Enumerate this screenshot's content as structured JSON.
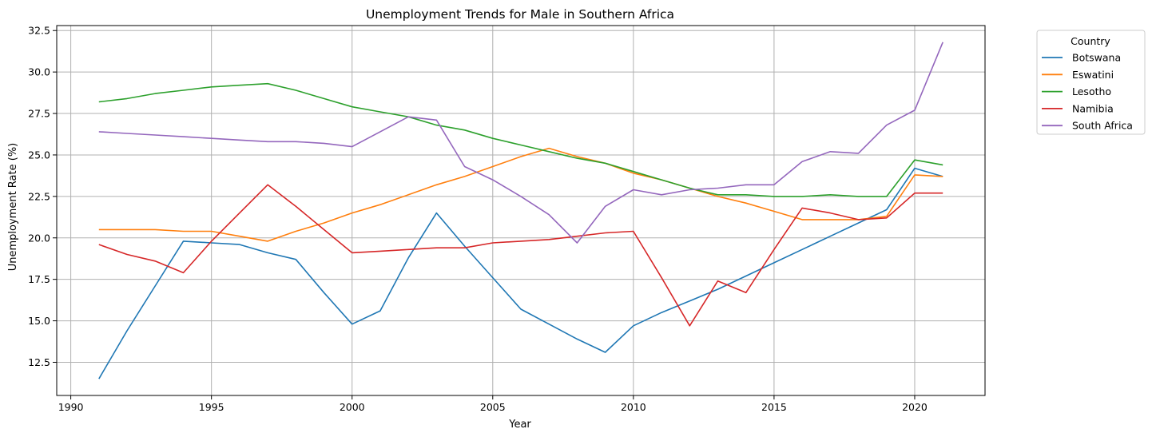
{
  "chart_data": {
    "type": "line",
    "title": "Unemployment Trends for Male in Southern Africa",
    "xlabel": "Year",
    "ylabel": "Unemployment Rate (%)",
    "xlim": [
      1989.5,
      2022.5
    ],
    "ylim": [
      10.5,
      32.8
    ],
    "xticks": [
      1990,
      1995,
      2000,
      2005,
      2010,
      2015,
      2020
    ],
    "yticks": [
      12.5,
      15.0,
      17.5,
      20.0,
      22.5,
      25.0,
      27.5,
      30.0,
      32.5
    ],
    "grid": true,
    "legend": {
      "title": "Country",
      "placement": "outside-top-right"
    },
    "x": [
      1991,
      1992,
      1993,
      1994,
      1995,
      1996,
      1997,
      1998,
      1999,
      2000,
      2001,
      2002,
      2003,
      2004,
      2005,
      2006,
      2007,
      2008,
      2009,
      2010,
      2011,
      2012,
      2013,
      2014,
      2015,
      2016,
      2017,
      2018,
      2019,
      2020,
      2021
    ],
    "series": [
      {
        "name": "Botswana",
        "color": "#1f77b4",
        "values": [
          11.5,
          14.4,
          17.1,
          19.8,
          19.7,
          19.6,
          19.1,
          18.7,
          16.7,
          14.8,
          15.6,
          18.8,
          21.5,
          19.5,
          17.6,
          15.7,
          14.8,
          13.9,
          13.1,
          14.7,
          15.5,
          16.2,
          16.9,
          17.7,
          18.5,
          19.3,
          20.1,
          20.9,
          21.7,
          24.2,
          23.7
        ]
      },
      {
        "name": "Eswatini",
        "color": "#ff7f0e",
        "values": [
          20.5,
          20.5,
          20.5,
          20.4,
          20.4,
          20.1,
          19.8,
          20.4,
          20.9,
          21.5,
          22.0,
          22.6,
          23.2,
          23.7,
          24.3,
          24.9,
          25.4,
          24.9,
          24.5,
          23.9,
          23.5,
          23.0,
          22.5,
          22.1,
          21.6,
          21.1,
          21.1,
          21.1,
          21.3,
          23.8,
          23.7
        ]
      },
      {
        "name": "Lesotho",
        "color": "#2ca02c",
        "values": [
          28.2,
          28.4,
          28.7,
          28.9,
          29.1,
          29.2,
          29.3,
          28.9,
          28.4,
          27.9,
          27.6,
          27.3,
          26.8,
          26.5,
          26.0,
          25.6,
          25.2,
          24.8,
          24.5,
          24.0,
          23.5,
          23.0,
          22.6,
          22.6,
          22.5,
          22.5,
          22.6,
          22.5,
          22.5,
          24.7,
          24.4
        ]
      },
      {
        "name": "Namibia",
        "color": "#d62728",
        "values": [
          19.6,
          19.0,
          18.6,
          17.9,
          19.8,
          21.5,
          23.2,
          21.9,
          20.5,
          19.1,
          19.2,
          19.3,
          19.4,
          19.4,
          19.7,
          19.8,
          19.9,
          20.1,
          20.3,
          20.4,
          17.6,
          14.7,
          17.4,
          16.7,
          19.3,
          21.8,
          21.5,
          21.1,
          21.2,
          22.7,
          22.7
        ]
      },
      {
        "name": "South Africa",
        "color": "#9467bd",
        "values": [
          26.4,
          26.3,
          26.2,
          26.1,
          26.0,
          25.9,
          25.8,
          25.8,
          25.7,
          25.5,
          26.4,
          27.3,
          27.1,
          24.3,
          23.5,
          22.5,
          21.4,
          19.7,
          21.9,
          22.9,
          22.6,
          22.9,
          23.0,
          23.2,
          23.2,
          24.6,
          25.2,
          25.1,
          26.8,
          27.7,
          31.8
        ]
      }
    ]
  }
}
